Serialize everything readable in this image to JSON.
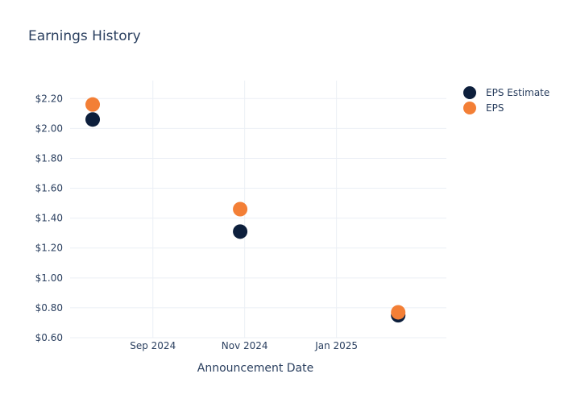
{
  "chart_data": {
    "type": "scatter",
    "title": "Earnings History",
    "xlabel": "Announcement Date",
    "ylabel": "",
    "x_ticks": [
      {
        "date": "2024-09-01",
        "label": "Sep 2024"
      },
      {
        "date": "2024-11-01",
        "label": "Nov 2024"
      },
      {
        "date": "2025-01-01",
        "label": "Jan 2025"
      }
    ],
    "x_range": [
      "2024-07-08",
      "2025-03-15"
    ],
    "y_ticks": [
      0.6,
      0.8,
      1.0,
      1.2,
      1.4,
      1.6,
      1.8,
      2.0,
      2.2
    ],
    "y_tick_labels": [
      "$0.60",
      "$0.80",
      "$1.00",
      "$1.20",
      "$1.40",
      "$1.60",
      "$1.80",
      "$2.00",
      "$2.20"
    ],
    "ylim": [
      0.6,
      2.32
    ],
    "grid": true,
    "legend_position": "top-right",
    "series": [
      {
        "name": "EPS Estimate",
        "color": "#0d1f3c",
        "points": [
          {
            "x": "2024-07-23",
            "y": 2.06
          },
          {
            "x": "2024-10-29",
            "y": 1.31
          },
          {
            "x": "2025-02-11",
            "y": 0.75
          }
        ]
      },
      {
        "name": "EPS",
        "color": "#f37f36",
        "points": [
          {
            "x": "2024-07-23",
            "y": 2.16
          },
          {
            "x": "2024-10-29",
            "y": 1.46
          },
          {
            "x": "2025-02-11",
            "y": 0.77
          }
        ]
      }
    ]
  }
}
